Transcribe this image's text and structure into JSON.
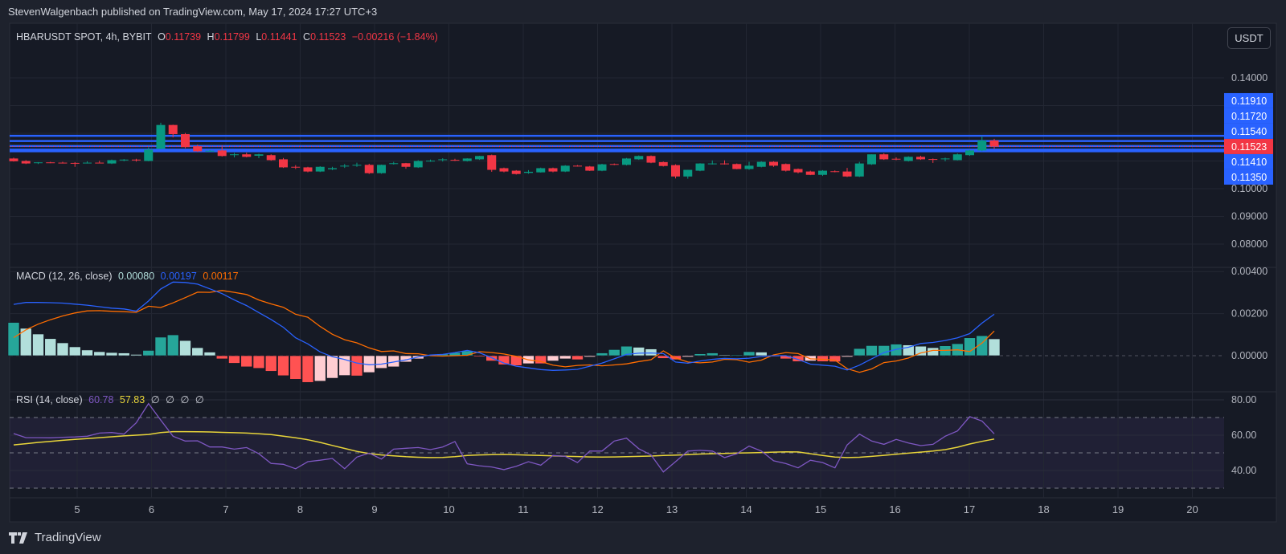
{
  "header": {
    "published": "StevenWalgenbach published on TradingView.com, May 17, 2024 17:27 UTC+3"
  },
  "currency_button": "USDT",
  "legend": {
    "symbol": "HBARUSDT SPOT, 4h, BYBIT",
    "o_label": "O",
    "o": "0.11739",
    "h_label": "H",
    "h": "0.11799",
    "l_label": "L",
    "l": "0.11441",
    "c_label": "C",
    "c": "0.11523",
    "change": "−0.00216 (−1.84%)"
  },
  "macd_legend": {
    "name": "MACD (12, 26, close)",
    "hist": "0.00080",
    "macd": "0.00197",
    "signal": "0.00117"
  },
  "rsi_legend": {
    "name": "RSI (14, close)",
    "rsi": "60.78",
    "ma": "57.83",
    "extra": [
      "∅",
      "∅",
      "∅",
      "∅"
    ]
  },
  "footer": {
    "brand": "TradingView",
    "logo_icon": "tradingview-logo-icon"
  },
  "colors": {
    "up": "#089981",
    "down": "#f23645",
    "macd": "#2962ff",
    "signal": "#ff6d00",
    "rsi": "#7e57c2",
    "rsi_ma": "#e8d53a",
    "hline": "#2962ff",
    "hist_up_strong": "#26a69a",
    "hist_up_weak": "#b2dfdb",
    "hist_down_strong": "#ff5252",
    "hist_down_weak": "#ffcdd2"
  },
  "chart_data": [
    {
      "type": "candlestick",
      "title": "HBARUSDT SPOT, 4h, BYBIT",
      "interval": "4h",
      "ylim": [
        0.075,
        0.145
      ],
      "price_ticks": [
        "0.14000",
        "0.10000",
        "0.09000",
        "0.08000"
      ],
      "x_ticks": [
        "5",
        "6",
        "7",
        "8",
        "9",
        "10",
        "11",
        "12",
        "13",
        "14",
        "15",
        "16",
        "17",
        "18",
        "19",
        "20"
      ],
      "grid": true,
      "last_price": "0.11523",
      "horizontal_lines": [
        {
          "price": 0.1191,
          "label": "0.11910"
        },
        {
          "price": 0.1172,
          "label": "0.11720"
        },
        {
          "price": 0.1154,
          "label": "0.11540"
        },
        {
          "price": 0.1141,
          "label": "0.11410"
        },
        {
          "price": 0.1135,
          "label": "0.11350"
        }
      ],
      "ohlc": [
        [
          0.1109,
          0.1112,
          0.1098,
          0.1099
        ],
        [
          0.11,
          0.1103,
          0.1089,
          0.1091
        ],
        [
          0.1094,
          0.1096,
          0.1089,
          0.1095
        ],
        [
          0.1095,
          0.1097,
          0.1092,
          0.1094
        ],
        [
          0.1094,
          0.1097,
          0.1091,
          0.1093
        ],
        [
          0.1093,
          0.1096,
          0.1079,
          0.1092
        ],
        [
          0.1092,
          0.1099,
          0.1091,
          0.1094
        ],
        [
          0.1094,
          0.1101,
          0.1092,
          0.1093
        ],
        [
          0.1091,
          0.1105,
          0.1089,
          0.1103
        ],
        [
          0.1103,
          0.1107,
          0.1099,
          0.1105
        ],
        [
          0.1105,
          0.1108,
          0.1098,
          0.1103
        ],
        [
          0.11,
          0.1149,
          0.1099,
          0.1141
        ],
        [
          0.1144,
          0.1238,
          0.1142,
          0.123
        ],
        [
          0.123,
          0.1231,
          0.1185,
          0.1197
        ],
        [
          0.1197,
          0.1201,
          0.1146,
          0.115
        ],
        [
          0.1153,
          0.1159,
          0.1133,
          0.1135
        ],
        [
          0.1136,
          0.114,
          0.1134,
          0.1137
        ],
        [
          0.1138,
          0.1156,
          0.1116,
          0.1118
        ],
        [
          0.1123,
          0.1129,
          0.1113,
          0.1124
        ],
        [
          0.1124,
          0.113,
          0.1113,
          0.1115
        ],
        [
          0.1119,
          0.1126,
          0.111,
          0.1124
        ],
        [
          0.1121,
          0.1124,
          0.1101,
          0.1103
        ],
        [
          0.1106,
          0.1111,
          0.1075,
          0.1077
        ],
        [
          0.1079,
          0.1085,
          0.1071,
          0.1077
        ],
        [
          0.1077,
          0.1079,
          0.1059,
          0.1062
        ],
        [
          0.1062,
          0.1081,
          0.106,
          0.1079
        ],
        [
          0.107,
          0.1079,
          0.1067,
          0.1074
        ],
        [
          0.1081,
          0.1089,
          0.1075,
          0.1083
        ],
        [
          0.1085,
          0.1094,
          0.1079,
          0.1086
        ],
        [
          0.1086,
          0.109,
          0.1053,
          0.1056
        ],
        [
          0.1056,
          0.1087,
          0.1054,
          0.1086
        ],
        [
          0.1089,
          0.1097,
          0.1087,
          0.1092
        ],
        [
          0.1092,
          0.1093,
          0.1072,
          0.1079
        ],
        [
          0.1077,
          0.1103,
          0.1075,
          0.11
        ],
        [
          0.1099,
          0.1105,
          0.1097,
          0.1101
        ],
        [
          0.1105,
          0.111,
          0.1098,
          0.1106
        ],
        [
          0.1104,
          0.1108,
          0.11,
          0.1103
        ],
        [
          0.11,
          0.111,
          0.1098,
          0.1109
        ],
        [
          0.1106,
          0.1119,
          0.1104,
          0.1118
        ],
        [
          0.1121,
          0.1123,
          0.1061,
          0.1068
        ],
        [
          0.1074,
          0.1076,
          0.1059,
          0.1062
        ],
        [
          0.1065,
          0.1067,
          0.1051,
          0.1053
        ],
        [
          0.1057,
          0.1067,
          0.1054,
          0.1061
        ],
        [
          0.1059,
          0.1076,
          0.1058,
          0.1074
        ],
        [
          0.1074,
          0.1076,
          0.1059,
          0.1062
        ],
        [
          0.1062,
          0.1085,
          0.106,
          0.1083
        ],
        [
          0.1083,
          0.1085,
          0.108,
          0.1081
        ],
        [
          0.108,
          0.1082,
          0.1064,
          0.1065
        ],
        [
          0.1065,
          0.109,
          0.1063,
          0.1088
        ],
        [
          0.1089,
          0.1091,
          0.1085,
          0.1087
        ],
        [
          0.1086,
          0.1111,
          0.1084,
          0.1109
        ],
        [
          0.1106,
          0.112,
          0.1104,
          0.1118
        ],
        [
          0.1118,
          0.112,
          0.1092,
          0.1094
        ],
        [
          0.1096,
          0.1098,
          0.108,
          0.1082
        ],
        [
          0.1085,
          0.1088,
          0.1037,
          0.1044
        ],
        [
          0.1044,
          0.1068,
          0.1036,
          0.1068
        ],
        [
          0.1065,
          0.1092,
          0.1063,
          0.1091
        ],
        [
          0.1089,
          0.1102,
          0.1087,
          0.1091
        ],
        [
          0.1091,
          0.1102,
          0.1087,
          0.1089
        ],
        [
          0.1089,
          0.1091,
          0.107,
          0.1071
        ],
        [
          0.1071,
          0.1097,
          0.1068,
          0.1083
        ],
        [
          0.1079,
          0.1099,
          0.1077,
          0.1097
        ],
        [
          0.1097,
          0.1099,
          0.1079,
          0.1083
        ],
        [
          0.1089,
          0.1091,
          0.1062,
          0.1065
        ],
        [
          0.1071,
          0.1073,
          0.1055,
          0.1059
        ],
        [
          0.1062,
          0.1065,
          0.1049,
          0.105
        ],
        [
          0.105,
          0.1067,
          0.1046,
          0.1065
        ],
        [
          0.1063,
          0.1066,
          0.1059,
          0.1061
        ],
        [
          0.1062,
          0.1075,
          0.1042,
          0.1044
        ],
        [
          0.1044,
          0.1097,
          0.1042,
          0.1091
        ],
        [
          0.1088,
          0.1124,
          0.1086,
          0.1124
        ],
        [
          0.1124,
          0.1128,
          0.1104,
          0.1106
        ],
        [
          0.1108,
          0.1113,
          0.1103,
          0.1106
        ],
        [
          0.11,
          0.1117,
          0.1098,
          0.1115
        ],
        [
          0.1115,
          0.1119,
          0.1104,
          0.1106
        ],
        [
          0.1107,
          0.1109,
          0.1093,
          0.1105
        ],
        [
          0.1108,
          0.1112,
          0.1099,
          0.1109
        ],
        [
          0.1103,
          0.1127,
          0.1102,
          0.1124
        ],
        [
          0.1121,
          0.114,
          0.1119,
          0.1138
        ],
        [
          0.1138,
          0.119,
          0.1135,
          0.11739
        ],
        [
          0.11739,
          0.11799,
          0.11441,
          0.11523
        ]
      ]
    },
    {
      "type": "macd",
      "title": "MACD (12, 26, close)",
      "ylim": [
        -0.0015,
        0.0043
      ],
      "y_ticks": [
        "0.00400",
        "0.00200",
        "0.00000"
      ],
      "histogram": [
        0.00158,
        0.0013,
        0.00103,
        0.00081,
        0.00061,
        0.00042,
        0.00027,
        0.00019,
        0.00015,
        0.00013,
        6e-05,
        0.00025,
        0.00088,
        0.00099,
        0.00072,
        0.00038,
        0.00017,
        -0.00015,
        -0.00036,
        -0.00053,
        -0.0006,
        -0.00074,
        -0.00095,
        -0.00112,
        -0.00127,
        -0.00121,
        -0.00107,
        -0.00094,
        -0.00096,
        -0.0008,
        -0.0006,
        -0.00053,
        -0.0003,
        -0.00015,
        3e-05,
        8e-05,
        0.00015,
        0.00023,
        -5e-05,
        -0.00025,
        -0.00043,
        -0.00047,
        -0.00038,
        -0.00038,
        -0.00025,
        -0.00015,
        -0.00019,
        -6e-05,
        0.00013,
        0.00029,
        0.00045,
        0.0004,
        0.00032,
        -0.00013,
        -0.00019,
        -6e-05,
        9e-05,
        0.00013,
        4e-05,
        4e-05,
        0.00019,
        0.00017,
        -4e-05,
        -0.00015,
        -0.00028,
        -0.00025,
        -0.00028,
        -0.00029,
        -6e-05,
        0.00034,
        0.00048,
        0.00048,
        0.00055,
        0.00051,
        0.00045,
        0.00038,
        0.00047,
        0.00057,
        0.00085,
        0.00095,
        0.0008
      ],
      "macd": [
        0.00244,
        0.00253,
        0.00253,
        0.00252,
        0.0025,
        0.00245,
        0.0024,
        0.00233,
        0.00226,
        0.00222,
        0.00212,
        0.0026,
        0.00317,
        0.0035,
        0.00348,
        0.0034,
        0.00318,
        0.00295,
        0.00265,
        0.00238,
        0.00205,
        0.00172,
        0.00135,
        0.00085,
        0.00056,
        0.00018,
        -5e-05,
        -0.00018,
        -0.00035,
        -0.00043,
        -0.0004,
        -0.0003,
        -0.0002,
        -6e-05,
        3e-05,
        6e-05,
        0.00015,
        0.00025,
        0.00014,
        -0.0001,
        -0.00035,
        -0.0005,
        -0.00058,
        -0.00066,
        -0.0007,
        -0.00068,
        -0.00065,
        -0.0005,
        -0.00035,
        -0.00015,
        6e-05,
        0.00012,
        0.00013,
        0.0001,
        -0.0003,
        -0.00036,
        -0.00025,
        -0.00017,
        -0.00013,
        -0.00015,
        -0.00012,
        -4e-05,
        0.0,
        0.0,
        -0.00018,
        -0.0004,
        -0.00045,
        -0.0005,
        -0.00068,
        -0.00045,
        -0.00015,
        0.00015,
        0.0003,
        0.0004,
        0.00058,
        0.00063,
        0.00072,
        0.00085,
        0.00105,
        0.00155,
        0.00197
      ]
    },
    {
      "type": "line",
      "title": "RSI (14, close)",
      "ylim": [
        25,
        85
      ],
      "y_ticks": [
        "80.00",
        "60.00",
        "40.00"
      ],
      "bands": [
        70,
        50,
        30
      ],
      "rsi": [
        60.9,
        58.6,
        58.6,
        58.5,
        58.8,
        59,
        59.4,
        61.2,
        61.5,
        60.6,
        67,
        77.9,
        68.5,
        59.4,
        56.7,
        56.8,
        53.3,
        53.3,
        52.1,
        53,
        49.5,
        44,
        43.5,
        41,
        45,
        45.8,
        46.8,
        41,
        47.6,
        49.8,
        46.5,
        52.1,
        52.6,
        53,
        51.8,
        53.3,
        56.4,
        43.8,
        42.7,
        42,
        40.5,
        42.4,
        45,
        43,
        48.5,
        48,
        44.5,
        51,
        51,
        56.7,
        58.3,
        52.3,
        48.8,
        39.2,
        45,
        51,
        51.4,
        51,
        47.3,
        49.5,
        53.8,
        51,
        45.5,
        43.9,
        41.5,
        45.8,
        44.5,
        41.5,
        54.5,
        60.6,
        56.7,
        54.8,
        57.6,
        55.6,
        54.1,
        54.8,
        59.4,
        62.4,
        70.5,
        68,
        60.78
      ],
      "rsi_ma": [
        54.5,
        55.2,
        55.9,
        56.5,
        57.1,
        57.6,
        58.1,
        58.6,
        59.1,
        59.6,
        60,
        60.4,
        61.5,
        62,
        62,
        61.9,
        61.8,
        61.6,
        61.4,
        61.2,
        60.8,
        60.3,
        59.4,
        58.5,
        57.4,
        55.9,
        54.2,
        52.5,
        50.8,
        49.6,
        48.8,
        48.3,
        47.8,
        47.5,
        47.3,
        47.4,
        47.8,
        48.5,
        48.8,
        49,
        49.1,
        48.9,
        48.7,
        48.5,
        48.3,
        48.1,
        47.9,
        47.7,
        47.6,
        47.7,
        47.8,
        48,
        48.2,
        48.5,
        48.7,
        49,
        49.3,
        49.5,
        49.7,
        49.9,
        50,
        50.2,
        50.4,
        50.6,
        50.5,
        49.5,
        48.5,
        47.6,
        47.3,
        47.5,
        48,
        48.6,
        49.2,
        49.8,
        50.4,
        51,
        51.8,
        53.2,
        55,
        56.5,
        57.83
      ]
    }
  ]
}
